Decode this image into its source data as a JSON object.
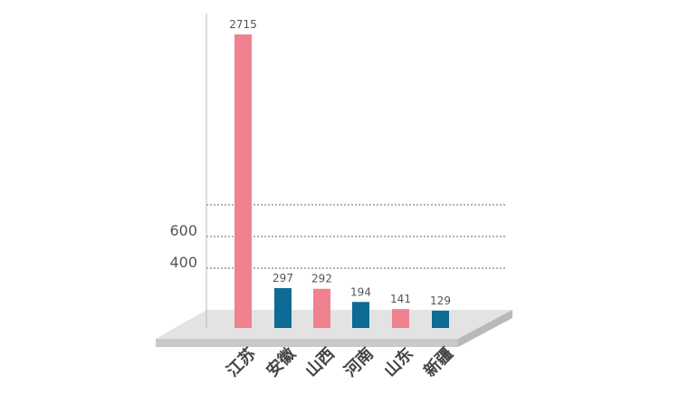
{
  "chart_data": {
    "type": "bar",
    "title": "",
    "xlabel": "",
    "ylabel": "",
    "categories": [
      "江苏",
      "安徽",
      "山西",
      "河南",
      "山东",
      "新疆"
    ],
    "values": [
      2715,
      297,
      292,
      194,
      141,
      129
    ],
    "y_ticks": [
      "400",
      "600"
    ],
    "colors": [
      "#f0828f",
      "#0e6b95",
      "#f0828f",
      "#0e6b95",
      "#f0828f",
      "#0e6b95"
    ],
    "grid": true,
    "legend": "none"
  }
}
